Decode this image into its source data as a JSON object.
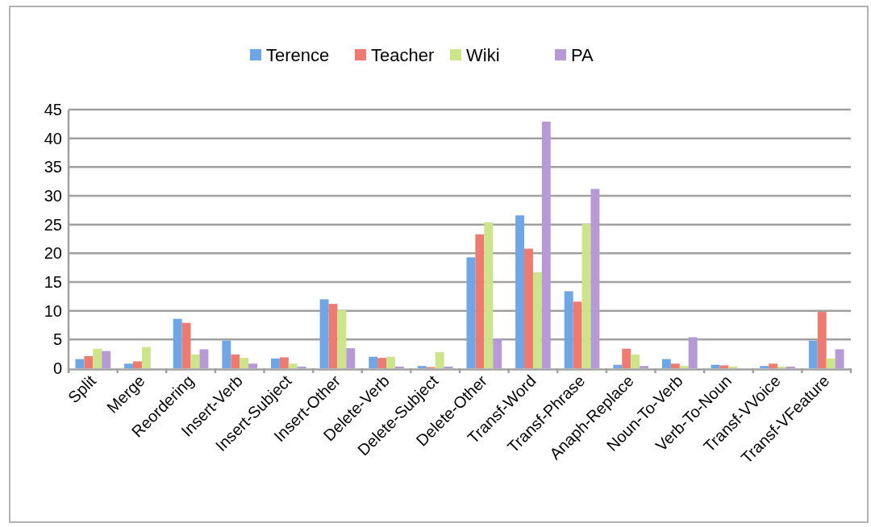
{
  "chart_data": {
    "type": "bar",
    "categories": [
      "Split",
      "Merge",
      "Reordering",
      "Insert-Verb",
      "Insert-Subject",
      "Insert-Other",
      "Delete-Verb",
      "Delete-Subject",
      "Delete-Other",
      "Transf-Word",
      "Transf-Phrase",
      "Anaph-Replace",
      "Noun-To-Verb",
      "Verb-To-Noun",
      "Transf-VVoice",
      "Transf-VFeature"
    ],
    "series": [
      {
        "name": "Terence",
        "color": "#6fa6e6",
        "values": [
          1.6,
          0.8,
          8.6,
          4.8,
          1.7,
          12.0,
          2.0,
          0.4,
          19.3,
          26.6,
          13.4,
          0.6,
          1.6,
          0.6,
          0.4,
          4.8
        ]
      },
      {
        "name": "Teacher",
        "color": "#ee7b72",
        "values": [
          2.1,
          1.2,
          7.9,
          2.4,
          1.9,
          11.2,
          1.8,
          0.2,
          23.3,
          20.8,
          11.6,
          3.4,
          0.8,
          0.5,
          0.8,
          9.8
        ]
      },
      {
        "name": "Wiki",
        "color": "#cde58a",
        "values": [
          3.4,
          3.7,
          2.4,
          1.8,
          0.8,
          10.1,
          2.0,
          2.8,
          25.4,
          16.7,
          25.1,
          2.4,
          0.4,
          0.3,
          0.3,
          1.7
        ]
      },
      {
        "name": "PA",
        "color": "#b69ad6",
        "values": [
          3.0,
          null,
          3.3,
          0.8,
          0.3,
          3.5,
          0.3,
          0.3,
          5.2,
          42.9,
          31.2,
          0.4,
          5.4,
          null,
          0.3,
          3.3
        ]
      }
    ],
    "ylim": [
      0,
      45
    ],
    "yticks": [
      0,
      5,
      10,
      15,
      20,
      25,
      30,
      35,
      40,
      45
    ],
    "grid": "y",
    "legend": "top"
  }
}
